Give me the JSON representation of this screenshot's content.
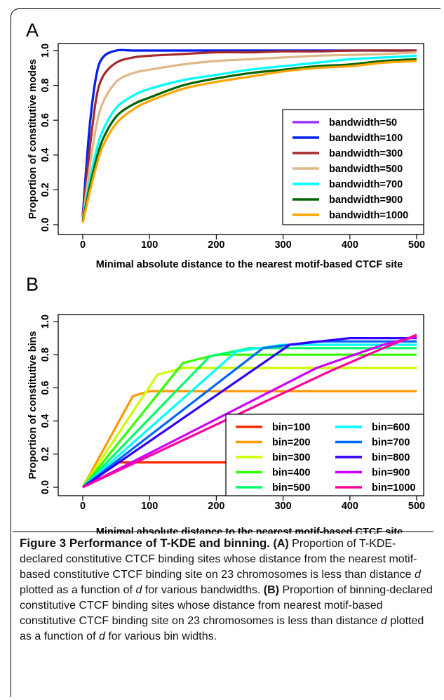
{
  "chart_data": [
    {
      "panel": "A",
      "type": "line",
      "xlabel": "Minimal absolute distance to the nearest motif-based CTCF site",
      "ylabel": "Proportion of constitutive modes",
      "xlim": [
        0,
        500
      ],
      "ylim": [
        0,
        1.0
      ],
      "xticks": [
        0,
        100,
        200,
        300,
        400,
        500
      ],
      "yticks": [
        0.0,
        0.2,
        0.4,
        0.6,
        0.8,
        1.0
      ],
      "grid": false,
      "legend_position": "bottom-right",
      "x": [
        0,
        10,
        20,
        30,
        50,
        75,
        100,
        150,
        200,
        250,
        300,
        350,
        400,
        450,
        500
      ],
      "series": [
        {
          "name": "bandwidth=50",
          "color": "#9b30ff",
          "values": [
            0.05,
            0.55,
            0.85,
            0.96,
            1.0,
            1.0,
            1.0,
            1.0,
            1.0,
            1.0,
            1.0,
            1.0,
            1.0,
            1.0,
            1.0
          ]
        },
        {
          "name": "bandwidth=100",
          "color": "#0022ee",
          "values": [
            0.05,
            0.55,
            0.85,
            0.96,
            1.0,
            1.0,
            1.0,
            1.0,
            1.0,
            1.0,
            1.0,
            1.0,
            1.0,
            1.0,
            1.0
          ]
        },
        {
          "name": "bandwidth=300",
          "color": "#a52a2a",
          "values": [
            0.04,
            0.42,
            0.72,
            0.85,
            0.93,
            0.96,
            0.97,
            0.98,
            0.99,
            0.99,
            0.995,
            0.995,
            1.0,
            1.0,
            1.0
          ]
        },
        {
          "name": "bandwidth=500",
          "color": "#deb887",
          "values": [
            0.03,
            0.32,
            0.56,
            0.7,
            0.82,
            0.87,
            0.89,
            0.92,
            0.94,
            0.95,
            0.96,
            0.97,
            0.975,
            0.98,
            0.99
          ]
        },
        {
          "name": "bandwidth=700",
          "color": "#00ffff",
          "values": [
            0.02,
            0.24,
            0.42,
            0.54,
            0.67,
            0.74,
            0.78,
            0.83,
            0.86,
            0.89,
            0.91,
            0.93,
            0.95,
            0.96,
            0.97
          ]
        },
        {
          "name": "bandwidth=900",
          "color": "#006400",
          "values": [
            0.02,
            0.21,
            0.37,
            0.49,
            0.62,
            0.69,
            0.73,
            0.8,
            0.84,
            0.87,
            0.89,
            0.91,
            0.92,
            0.94,
            0.95
          ]
        },
        {
          "name": "bandwidth=1000",
          "color": "#ffa500",
          "values": [
            0.01,
            0.18,
            0.33,
            0.45,
            0.58,
            0.66,
            0.71,
            0.78,
            0.82,
            0.85,
            0.88,
            0.9,
            0.91,
            0.93,
            0.94
          ]
        }
      ]
    },
    {
      "panel": "B",
      "type": "line",
      "xlabel": "Minimal absolute distance to the nearest motif-based CTCF site",
      "ylabel": "Proportion of constitutive bins",
      "xlim": [
        0,
        500
      ],
      "ylim": [
        0,
        1.0
      ],
      "xticks": [
        0,
        100,
        200,
        300,
        400,
        500
      ],
      "yticks": [
        0.0,
        0.2,
        0.4,
        0.6,
        0.8,
        1.0
      ],
      "grid": false,
      "legend_position": "bottom-right",
      "series": [
        {
          "name": "bin=100",
          "color": "#ff2a00",
          "points": [
            [
              0,
              0
            ],
            [
              50,
              0.15
            ],
            [
              500,
              0.15
            ]
          ]
        },
        {
          "name": "bin=200",
          "color": "#ff9900",
          "points": [
            [
              0,
              0
            ],
            [
              75,
              0.55
            ],
            [
              100,
              0.58
            ],
            [
              500,
              0.58
            ]
          ]
        },
        {
          "name": "bin=300",
          "color": "#ccff00",
          "points": [
            [
              0,
              0
            ],
            [
              112,
              0.68
            ],
            [
              150,
              0.72
            ],
            [
              500,
              0.72
            ]
          ]
        },
        {
          "name": "bin=400",
          "color": "#33ff00",
          "points": [
            [
              0,
              0
            ],
            [
              150,
              0.75
            ],
            [
              200,
              0.8
            ],
            [
              500,
              0.8
            ]
          ]
        },
        {
          "name": "bin=500",
          "color": "#00ff66",
          "points": [
            [
              0,
              0
            ],
            [
              190,
              0.79
            ],
            [
              250,
              0.84
            ],
            [
              500,
              0.84
            ]
          ]
        },
        {
          "name": "bin=600",
          "color": "#00ffff",
          "points": [
            [
              0,
              0
            ],
            [
              230,
              0.82
            ],
            [
              300,
              0.86
            ],
            [
              500,
              0.86
            ]
          ]
        },
        {
          "name": "bin=700",
          "color": "#0066ff",
          "points": [
            [
              0,
              0
            ],
            [
              270,
              0.84
            ],
            [
              350,
              0.88
            ],
            [
              500,
              0.88
            ]
          ]
        },
        {
          "name": "bin=800",
          "color": "#3300ff",
          "points": [
            [
              0,
              0
            ],
            [
              310,
              0.86
            ],
            [
              400,
              0.9
            ],
            [
              500,
              0.9
            ]
          ]
        },
        {
          "name": "bin=900",
          "color": "#cc00ff",
          "points": [
            [
              0,
              0
            ],
            [
              350,
              0.72
            ],
            [
              450,
              0.86
            ],
            [
              500,
              0.91
            ]
          ]
        },
        {
          "name": "bin=1000",
          "color": "#ff0099",
          "points": [
            [
              0,
              0
            ],
            [
              370,
              0.7
            ],
            [
              450,
              0.84
            ],
            [
              500,
              0.92
            ]
          ]
        }
      ]
    }
  ],
  "panels": {
    "a_letter": "A",
    "b_letter": "B"
  },
  "caption": {
    "title": "Figure 3 Performance of T-KDE and binning.",
    "a_label": "(A)",
    "a_text_1": " Proportion of T-KDE-declared constitutive CTCF binding sites whose distance from the nearest motif-based constitutive CTCF binding site on 23 chromosomes is less than distance ",
    "d1": "d",
    "a_text_2": " plotted as a function of ",
    "d2": "d",
    "a_text_3": " for various bandwidths. ",
    "b_label": "(B)",
    "b_text_1": " Proportion of binning-declared constitutive CTCF binding sites whose distance from nearest motif-based constitutive CTCF binding site on 23 chromosomes is less than distance ",
    "d3": "d",
    "b_text_2": " plotted as a function of ",
    "d4": "d",
    "b_text_3": " for various bin widths."
  }
}
